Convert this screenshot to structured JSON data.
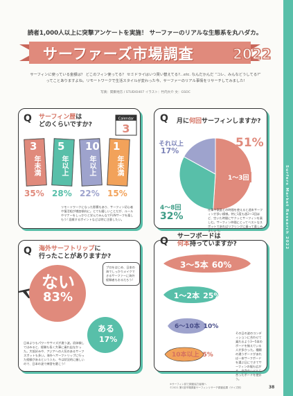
{
  "lead": "読者1,000人以上に突撃アンケートを実施！ サーファーのリアルな生態系を丸ハダカ。",
  "title": "サーファーズ市場調査",
  "year": "2022",
  "intro1": "サーフィンに使っている金額は？ どこのフィン使ってる？ セミドライはいつ買い替えてる?…etc. なんだかんだ “コレ、みんなどうしてる?”",
  "intro2": "ってことありますよね。リモートワークで生活スタイルが変わった今、サーファーのリアル事情をリサーチしてみました!",
  "credit": "写真：関東地方 / STUDIO407  イラスト：竹内大介  文：GSOC",
  "side_text": "Surfers Market Research 2022",
  "colors": {
    "teal": "#58bfa9",
    "coral": "#e08a7c",
    "orange": "#f2a25a",
    "lavender": "#9ea3cd"
  },
  "q1": {
    "q": "Q",
    "l1_hl": "サーフィン歴",
    "l1_rest": "は",
    "l2": "どのくらいですか?",
    "calendar": "Calendar",
    "cards": [
      {
        "num": "3",
        "txt": "年未満",
        "pct": "35%",
        "value": 35,
        "color": "#e08a7c"
      },
      {
        "num": "5",
        "txt": "年以上",
        "pct": "28%",
        "value": 28,
        "color": "#58bfa9"
      },
      {
        "num": "10",
        "txt": "年以上",
        "pct": "22%",
        "value": 22,
        "color": "#9ea3cd"
      },
      {
        "num": "1",
        "txt": "年未満",
        "pct": "15%",
        "value": 15,
        "color": "#f2a25a"
      }
    ],
    "note": "リモートワークになった影響もあり、サーフィン初心者や復活組が増加傾向に。とても嬉しいことだが、ルールやマナーをしっかりと学んでみんなでFUNサーフを楽しもう! 混雑するポイントなどは特に注意したい。"
  },
  "q2": {
    "q": "Q",
    "l1_pre": "月に",
    "l1_hl": "何回",
    "l1_rest": "サーフィンしますか?",
    "chart_data": {
      "type": "pie",
      "slices": [
        {
          "label": "1〜3回",
          "value": 51,
          "pct": "51%",
          "color": "#e08a7c"
        },
        {
          "label": "4〜8回",
          "value": 32,
          "pct": "32%",
          "color": "#58bfa9"
        },
        {
          "label": "それ以上",
          "value": 17,
          "pct": "17%",
          "color": "#9ea3cd"
        }
      ]
    },
    "note": "仕事や家庭との時間を使えると週末サーフィンが多い模様。特に1度も週2〜3回ほど、空いた時間にサクッとサーフィンを楽しむ。サーフィン仲間にとってベストなスポットであればリフリングに乗って楽しみましょう。"
  },
  "q3": {
    "q": "Q",
    "l1_hl": "海外サーフトリップ",
    "l1_rest": "に",
    "l2": "行ったことがありますか?",
    "no_label": "ない",
    "no_pct": "83%",
    "no_value": 83,
    "yes_label": "ある",
    "yes_pct": "17%",
    "yes_value": 17,
    "bubble": "プロをはじめ、日本の海でしっかりメイクできるサーファーに海外経験者もおるだろう!",
    "note": "日本よりもパワーやサイズが違う波。初体験してはみると、経験も長く大事に乗れ出なかった。大抵好みや、アジアへの人気のあるサーフスポットも多い。海外へサーフトリップに行った経験があるという人も、今は状況的に厳しいので、日本の波で練習を磨こう!"
  },
  "q4": {
    "q": "Q",
    "l1": "サーフボードは",
    "l2_hl": "何本",
    "l2_rest": "持っていますか?",
    "boards": [
      {
        "label": "3〜5本",
        "pct": "60%",
        "value": 60,
        "color": "#e08a7c"
      },
      {
        "label": "1〜2本",
        "pct": "25%",
        "value": 25,
        "color": "#58bfa9"
      },
      {
        "label": "6〜10本",
        "pct": "10%",
        "value": 10,
        "color": "#9ea3cd"
      },
      {
        "label": "10本以上",
        "pct": "5%",
        "value": 5,
        "color": "#f2a25a"
      }
    ],
    "note": "その日の波のコンディションに合わせて乗れるよう3〜5本のボードを揃えている人が多かった。種類の違うボードがあれば一本サーフボードを選ぶ日にできてサーフィンの幅も広がる。自身のレベルに合ったボードを使おう。"
  },
  "footer1": "※サーフィン誌で調査協力者様へ",
  "footer2": "©2021 第1回市場調査サーフィンリサーチ調査結果（サイズ別）",
  "page_no": "38"
}
